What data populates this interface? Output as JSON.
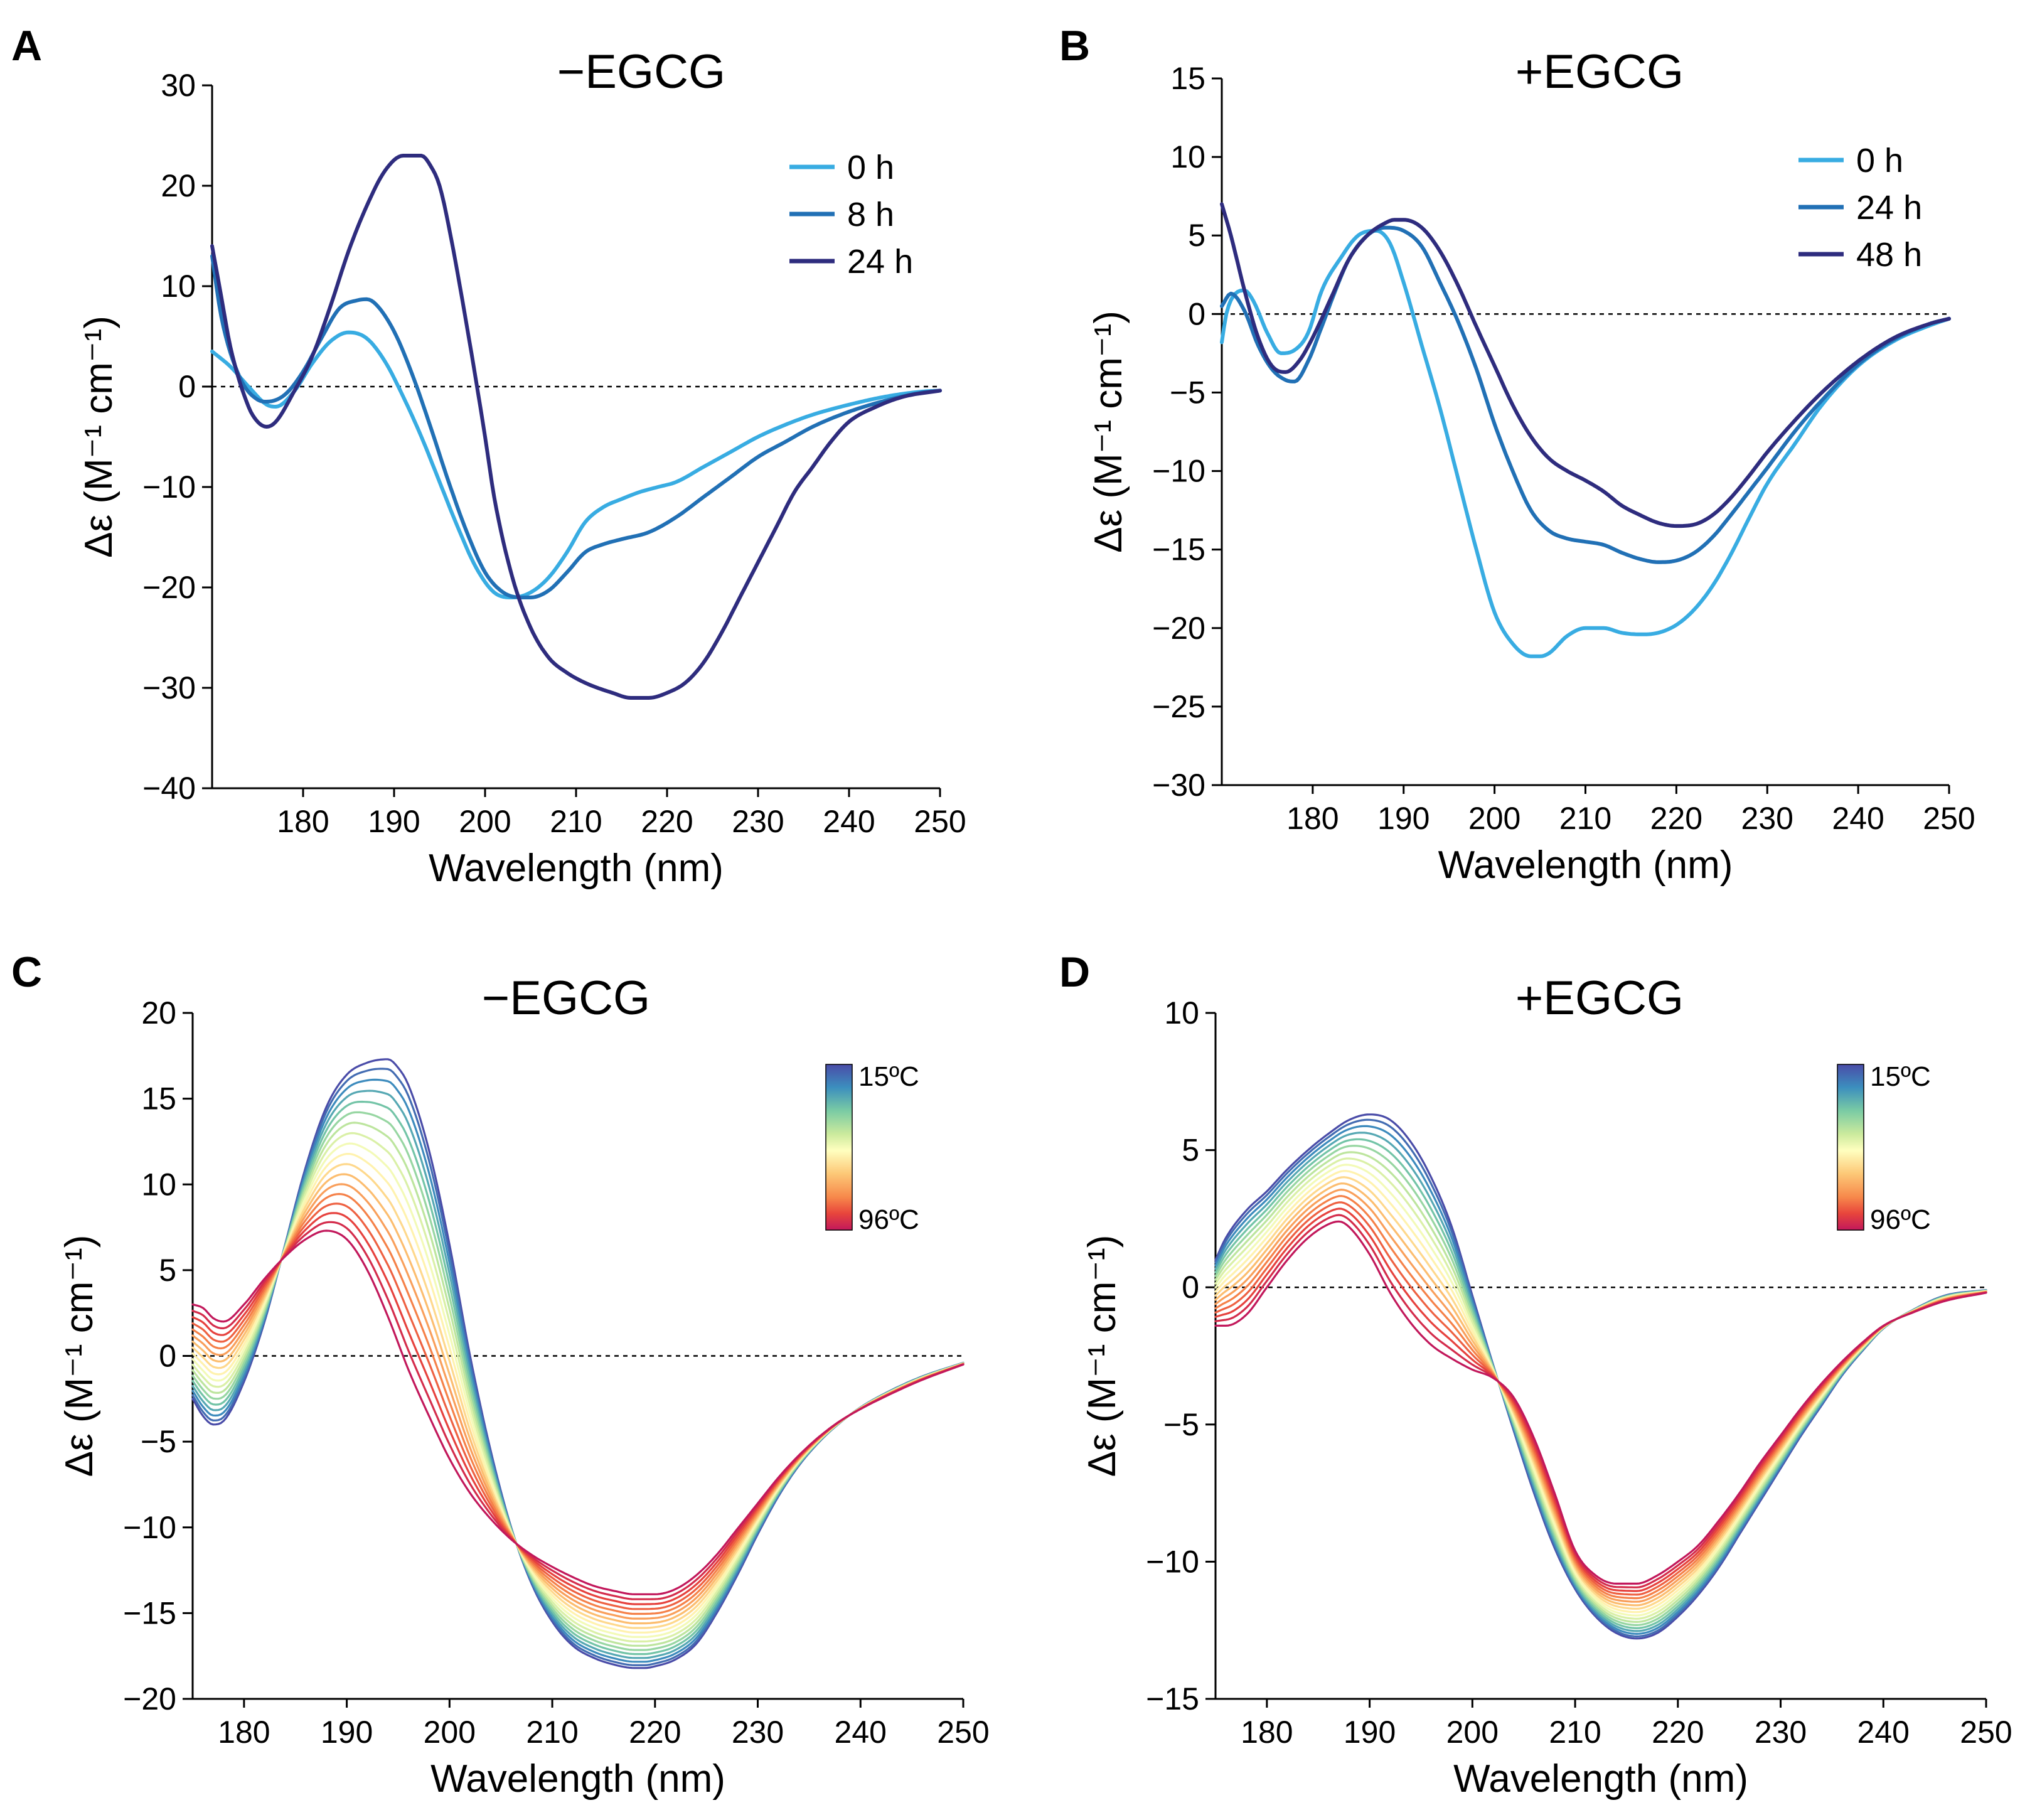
{
  "chart_data": [
    {
      "panel": "A",
      "type": "line",
      "title": "−EGCG",
      "xlabel": "Wavelength (nm)",
      "ylabel": "Δε (M⁻¹ cm⁻¹)",
      "xlim": [
        170,
        250
      ],
      "ylim": [
        -40,
        30
      ],
      "xticks": [
        180,
        190,
        200,
        210,
        220,
        230,
        240,
        250
      ],
      "yticks": [
        -40,
        -30,
        -20,
        -10,
        0,
        10,
        20,
        30
      ],
      "xtick_labels": [
        "180",
        "190",
        "200",
        "210",
        "220",
        "230",
        "240",
        "250"
      ],
      "ytick_labels": [
        "−40",
        "−30",
        "−20",
        "−10",
        "0",
        "10",
        "20",
        "30"
      ],
      "legend_position": "top-right",
      "series": [
        {
          "name": "0 h",
          "color": "#38ACE2",
          "x": [
            170,
            172,
            174,
            176,
            177,
            179,
            181,
            183,
            185,
            187,
            189,
            191,
            193,
            195,
            197,
            199,
            201,
            203,
            205,
            207,
            209,
            211,
            213,
            215,
            217,
            219,
            221,
            224,
            227,
            230,
            233,
            236,
            240,
            244,
            248,
            250
          ],
          "y": [
            3.5,
            2,
            0,
            -1.8,
            -2,
            -0.5,
            2.3,
            4.5,
            5.4,
            4.8,
            2.5,
            -1,
            -5,
            -9.5,
            -14,
            -18,
            -20.5,
            -21,
            -20.5,
            -19,
            -16.5,
            -13.5,
            -12,
            -11.2,
            -10.5,
            -10,
            -9.5,
            -8,
            -6.5,
            -5,
            -3.8,
            -2.8,
            -1.8,
            -1,
            -0.5,
            -0.4
          ]
        },
        {
          "name": "8 h",
          "color": "#2170B5",
          "x": [
            170,
            171,
            173,
            175,
            176,
            178,
            180,
            182,
            184,
            186,
            187,
            188,
            190,
            192,
            194,
            196,
            198,
            200,
            202,
            204,
            205,
            207,
            209,
            211,
            213,
            215,
            218,
            221,
            224,
            227,
            230,
            233,
            236,
            240,
            244,
            248,
            250
          ],
          "y": [
            13,
            7,
            1,
            -1.3,
            -1.5,
            -0.8,
            1.5,
            4.8,
            7.8,
            8.6,
            8.7,
            8.2,
            5.5,
            1.2,
            -4,
            -9.5,
            -14.5,
            -18.5,
            -20.5,
            -21,
            -21,
            -20.3,
            -18.5,
            -16.5,
            -15.7,
            -15.2,
            -14.5,
            -13,
            -11,
            -9,
            -7,
            -5.5,
            -4,
            -2.5,
            -1.4,
            -0.6,
            -0.4
          ]
        },
        {
          "name": "24 h",
          "color": "#2E2C7E",
          "x": [
            170,
            171,
            172,
            174,
            175,
            176,
            177,
            179,
            181,
            183,
            185,
            187,
            189,
            191,
            193,
            194,
            195,
            196,
            198,
            200,
            201,
            203,
            205,
            207,
            209,
            211,
            214,
            216,
            218,
            220,
            222,
            224,
            226,
            228,
            230,
            232,
            234,
            236,
            238,
            240,
            243,
            246,
            250
          ],
          "y": [
            14,
            9,
            4,
            -2,
            -3.5,
            -4,
            -3.5,
            -0.5,
            3,
            8,
            13.5,
            18,
            21.5,
            23,
            23,
            22,
            20,
            16,
            6,
            -5,
            -11,
            -19,
            -24,
            -27,
            -28.5,
            -29.5,
            -30.5,
            -31,
            -31,
            -30.5,
            -29.5,
            -27.5,
            -24.5,
            -21,
            -17.5,
            -14,
            -10.5,
            -8,
            -5.5,
            -3.5,
            -2,
            -1,
            -0.4
          ]
        }
      ]
    },
    {
      "panel": "B",
      "type": "line",
      "title": "+EGCG",
      "xlabel": "Wavelength (nm)",
      "ylabel": "Δε (M⁻¹ cm⁻¹)",
      "xlim": [
        170,
        250
      ],
      "ylim": [
        -30,
        15
      ],
      "xticks": [
        180,
        190,
        200,
        210,
        220,
        230,
        240,
        250
      ],
      "yticks": [
        -30,
        -25,
        -20,
        -15,
        -10,
        -5,
        0,
        5,
        10,
        15
      ],
      "xtick_labels": [
        "180",
        "190",
        "200",
        "210",
        "220",
        "230",
        "240",
        "250"
      ],
      "ytick_labels": [
        "−30",
        "−25",
        "−20",
        "−15",
        "−10",
        "−5",
        "0",
        "5",
        "10",
        "15"
      ],
      "legend_position": "top-right",
      "series": [
        {
          "name": "0 h",
          "color": "#38ACE2",
          "x": [
            170,
            170.5,
            171.5,
            172.5,
            173.5,
            175,
            176.5,
            178,
            179.5,
            181,
            183,
            185,
            187,
            188.5,
            190,
            192,
            194,
            196,
            198,
            200,
            202,
            204,
            205,
            206,
            208,
            210,
            212,
            214,
            216,
            218,
            220,
            222,
            224,
            226,
            228,
            230,
            233,
            236,
            240,
            244,
            248,
            250
          ],
          "y": [
            -1.8,
            0,
            1.3,
            1.5,
            0.8,
            -1.2,
            -2.5,
            -2.3,
            -1.2,
            1.5,
            3.5,
            5,
            5.3,
            4.5,
            2,
            -2,
            -6,
            -10.5,
            -15,
            -19,
            -21,
            -21.8,
            -21.8,
            -21.6,
            -20.5,
            -20,
            -20,
            -20.3,
            -20.4,
            -20.3,
            -19.8,
            -18.8,
            -17.3,
            -15.3,
            -13,
            -10.8,
            -8.3,
            -5.8,
            -3.3,
            -1.7,
            -0.7,
            -0.3
          ]
        },
        {
          "name": "24 h",
          "color": "#2170B5",
          "x": [
            170,
            171,
            172.5,
            174,
            175.5,
            177,
            178,
            179.5,
            181,
            182.5,
            184,
            186,
            188,
            190,
            192,
            194,
            196,
            198,
            200,
            202,
            204,
            206,
            208,
            210,
            212,
            214,
            216,
            218,
            220,
            222,
            224,
            226,
            228,
            230,
            233,
            236,
            240,
            244,
            248,
            250
          ],
          "y": [
            0.5,
            1.3,
            0.2,
            -2,
            -3.5,
            -4.2,
            -4.3,
            -3,
            -0.8,
            1.5,
            3.5,
            5,
            5.5,
            5.3,
            4.3,
            2,
            -0.5,
            -3.5,
            -7,
            -10,
            -12.5,
            -13.8,
            -14.3,
            -14.5,
            -14.7,
            -15.2,
            -15.6,
            -15.8,
            -15.7,
            -15.2,
            -14.2,
            -12.8,
            -11.3,
            -9.8,
            -7.5,
            -5.5,
            -3.2,
            -1.6,
            -0.6,
            -0.3
          ]
        },
        {
          "name": "48 h",
          "color": "#2E2C7E",
          "x": [
            170,
            171,
            172.5,
            174,
            175.5,
            177,
            178.5,
            180,
            182,
            184,
            186,
            188,
            189,
            190,
            192,
            194,
            196,
            198,
            200,
            202,
            204,
            206,
            208,
            210,
            212,
            214,
            216,
            218,
            220,
            222,
            224,
            226,
            228,
            230,
            233,
            236,
            240,
            244,
            248,
            250
          ],
          "y": [
            7,
            5,
            1.5,
            -1.5,
            -3.3,
            -3.7,
            -3,
            -1.5,
            1,
            3.5,
            5,
            5.8,
            6,
            6,
            5.5,
            4,
            1.8,
            -0.8,
            -3.3,
            -5.8,
            -7.8,
            -9.2,
            -10,
            -10.6,
            -11.3,
            -12.2,
            -12.8,
            -13.3,
            -13.5,
            -13.4,
            -12.8,
            -11.7,
            -10.3,
            -8.8,
            -6.8,
            -5,
            -3,
            -1.5,
            -0.6,
            -0.3
          ]
        }
      ]
    },
    {
      "panel": "C",
      "type": "line",
      "title": "−EGCG",
      "xlabel": "Wavelength (nm)",
      "ylabel": "Δε (M⁻¹ cm⁻¹)",
      "xlim": [
        175,
        250
      ],
      "ylim": [
        -20,
        20
      ],
      "xticks": [
        180,
        190,
        200,
        210,
        220,
        230,
        240,
        250
      ],
      "yticks": [
        -20,
        -15,
        -10,
        -5,
        0,
        5,
        10,
        15,
        20
      ],
      "xtick_labels": [
        "180",
        "190",
        "200",
        "210",
        "220",
        "230",
        "240",
        "250"
      ],
      "ytick_labels": [
        "−20",
        "−15",
        "−10",
        "−5",
        "0",
        "5",
        "10",
        "15",
        "20"
      ],
      "colorbar": {
        "min_label": "96ºC",
        "max_label": "15ºC",
        "position": "top-right",
        "colors": [
          "#C2185B",
          "#E8453C",
          "#F7894B",
          "#FDC877",
          "#FFFFBF",
          "#CBEA9D",
          "#7ACBA4",
          "#3C8FBE",
          "#4A4CA8"
        ]
      },
      "series_count": 18,
      "series_note": "Temperature ramp 15°C (blue) to 96°C (red)",
      "coldest": {
        "x": [
          175,
          176,
          177,
          178,
          180,
          182,
          184,
          186,
          188,
          190,
          192,
          194,
          195,
          196,
          198,
          200,
          202,
          204,
          206,
          208,
          210,
          212,
          214,
          216,
          218,
          219,
          220,
          222,
          224,
          226,
          228,
          230,
          232,
          234,
          236,
          238,
          240,
          243,
          246,
          250
        ],
        "y": [
          -2.5,
          -3.5,
          -4,
          -3.8,
          -1.5,
          2,
          6.5,
          11,
          14.5,
          16.4,
          17.1,
          17.3,
          16.8,
          15.8,
          12,
          6.5,
          0,
          -5.5,
          -10,
          -13.3,
          -15.5,
          -16.9,
          -17.6,
          -18,
          -18.2,
          -18.2,
          -18.1,
          -17.7,
          -16.8,
          -15,
          -12.8,
          -10.4,
          -8.2,
          -6.4,
          -5,
          -3.9,
          -3,
          -2,
          -1.2,
          -0.4
        ]
      },
      "hottest": {
        "x": [
          175,
          176,
          177,
          178,
          180,
          182,
          184,
          186,
          188,
          190,
          192,
          194,
          196,
          198,
          200,
          202,
          204,
          206,
          208,
          210,
          212,
          214,
          216,
          218,
          220,
          222,
          224,
          226,
          228,
          230,
          232,
          234,
          236,
          238,
          240,
          243,
          246,
          250
        ],
        "y": [
          3,
          2.8,
          2.2,
          2,
          3,
          4.5,
          5.8,
          6.8,
          7.3,
          6.8,
          5,
          2.3,
          -0.8,
          -3.5,
          -6,
          -8,
          -9.5,
          -10.7,
          -11.6,
          -12.3,
          -12.9,
          -13.4,
          -13.7,
          -13.9,
          -13.9,
          -13.6,
          -12.8,
          -11.6,
          -10.1,
          -8.6,
          -7.1,
          -5.8,
          -4.7,
          -3.8,
          -3.1,
          -2.2,
          -1.4,
          -0.5
        ]
      }
    },
    {
      "panel": "D",
      "type": "line",
      "title": "+EGCG",
      "xlabel": "Wavelength (nm)",
      "ylabel": "Δε (M⁻¹ cm⁻¹)",
      "xlim": [
        175,
        250
      ],
      "ylim": [
        -15,
        10
      ],
      "xticks": [
        180,
        190,
        200,
        210,
        220,
        230,
        240,
        250
      ],
      "yticks": [
        -15,
        -10,
        -5,
        0,
        5,
        10
      ],
      "xtick_labels": [
        "180",
        "190",
        "200",
        "210",
        "220",
        "230",
        "240",
        "250"
      ],
      "ytick_labels": [
        "−15",
        "−10",
        "−5",
        "0",
        "5",
        "10"
      ],
      "colorbar": {
        "min_label": "96ºC",
        "max_label": "15ºC",
        "position": "top-right",
        "colors": [
          "#C2185B",
          "#E8453C",
          "#F7894B",
          "#FDC877",
          "#FFFFBF",
          "#CBEA9D",
          "#7ACBA4",
          "#3C8FBE",
          "#4A4CA8"
        ]
      },
      "series_count": 18,
      "series_note": "Temperature ramp 15°C (blue) to 96°C (red)",
      "coldest": {
        "x": [
          175,
          176,
          178,
          180,
          182,
          184,
          186,
          188,
          190,
          192,
          194,
          196,
          198,
          200,
          202,
          204,
          206,
          208,
          210,
          212,
          214,
          216,
          218,
          220,
          222,
          224,
          226,
          228,
          230,
          232,
          234,
          236,
          238,
          240,
          243,
          246,
          250
        ],
        "y": [
          1,
          1.8,
          2.8,
          3.5,
          4.3,
          5,
          5.6,
          6.1,
          6.3,
          6.1,
          5.3,
          4,
          2.2,
          -0.3,
          -2.8,
          -5.2,
          -7.5,
          -9.5,
          -11,
          -12,
          -12.6,
          -12.8,
          -12.6,
          -12,
          -11.2,
          -10.2,
          -9,
          -7.8,
          -6.6,
          -5.4,
          -4.3,
          -3.2,
          -2.3,
          -1.5,
          -0.8,
          -0.3,
          -0.1
        ]
      },
      "hottest": {
        "x": [
          175,
          176,
          178,
          180,
          182,
          184,
          186,
          187,
          188,
          190,
          192,
          194,
          196,
          198,
          200,
          202,
          204,
          206,
          208,
          210,
          212,
          214,
          216,
          218,
          220,
          222,
          224,
          226,
          228,
          230,
          232,
          234,
          236,
          238,
          240,
          243,
          246,
          250
        ],
        "y": [
          -1.4,
          -1.4,
          -1,
          0,
          1,
          1.8,
          2.3,
          2.4,
          2.2,
          1.2,
          -0.2,
          -1.3,
          -2.1,
          -2.6,
          -3,
          -3.3,
          -4,
          -5.5,
          -7.5,
          -9.6,
          -10.5,
          -10.8,
          -10.8,
          -10.5,
          -10,
          -9.4,
          -8.5,
          -7.5,
          -6.4,
          -5.4,
          -4.4,
          -3.5,
          -2.7,
          -2,
          -1.4,
          -0.9,
          -0.5,
          -0.2
        ]
      }
    }
  ]
}
